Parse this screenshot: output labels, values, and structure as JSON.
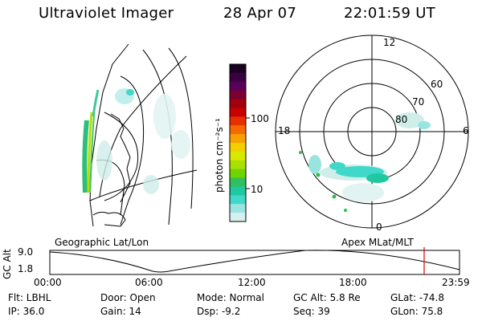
{
  "header": {
    "instrument": "Ultraviolet Imager",
    "date": "28 Apr 07",
    "time": "22:01:59 UT"
  },
  "colorbar": {
    "unit_label": "photon cm⁻²s⁻¹",
    "ticks": [
      "100",
      "10"
    ],
    "colors": [
      "#1a0020",
      "#3b0040",
      "#5a005a",
      "#7a0030",
      "#a00010",
      "#c80000",
      "#e63000",
      "#f56a00",
      "#f7a000",
      "#f2d000",
      "#d8e800",
      "#a8e000",
      "#6fd400",
      "#30c060",
      "#20c8a0",
      "#40d8c8",
      "#9ae4e0",
      "#d6f0ee"
    ]
  },
  "panels": {
    "left_label": "Geographic Lat/Lon",
    "right_label": "Apex MLat/MLT"
  },
  "polar": {
    "lat_labels": [
      "60",
      "70",
      "80"
    ],
    "mlt_labels": {
      "top": "12",
      "left": "18",
      "right": "6",
      "bottom": "0"
    }
  },
  "altitude_plot": {
    "ylabel": "GC Alt",
    "yticks": [
      "9.0",
      "1.8"
    ],
    "xticks": [
      "00:00",
      "06:00",
      "12:00",
      "18:00",
      "23:59"
    ],
    "marker_color": "#dd0000"
  },
  "info": {
    "flt": "Flt: LBHL",
    "door": "Door: Open",
    "mode": "Mode: Normal",
    "gcalt": "GC Alt: 5.8 Re",
    "glat": "GLat: -74.8",
    "ip": "IP: 36.0",
    "gain": "Gain: 14",
    "dsp": "Dsp:    -9.2",
    "seq": "Seq: 39",
    "glon": "GLon:  75.8"
  }
}
